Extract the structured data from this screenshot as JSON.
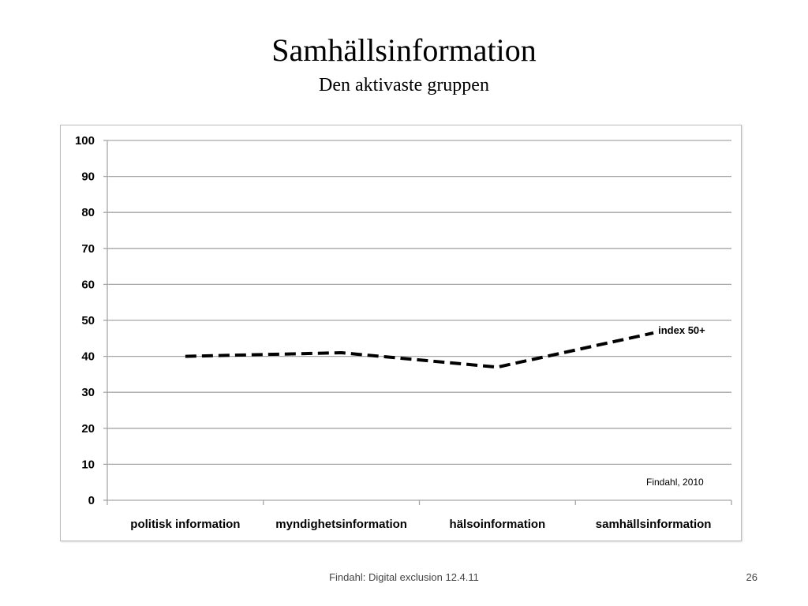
{
  "slide": {
    "title": "Samhällsinformation",
    "subtitle": "Den aktivaste gruppen",
    "footer_text": "Findahl: Digital exclusion 12.4.11",
    "page_number": "26"
  },
  "chart_data": {
    "type": "line",
    "categories": [
      "politisk information",
      "myndighetsinformation",
      "hälsoinformation",
      "samhällsinformation"
    ],
    "series": [
      {
        "name": "index 50+",
        "values": [
          40,
          41,
          37,
          46.5
        ],
        "color": "#000000",
        "style": "dashed"
      }
    ],
    "ylim": [
      0,
      100
    ],
    "yticks": [
      0,
      10,
      20,
      30,
      40,
      50,
      60,
      70,
      80,
      90,
      100
    ],
    "grid": true,
    "annotation": "Findahl, 2010"
  }
}
